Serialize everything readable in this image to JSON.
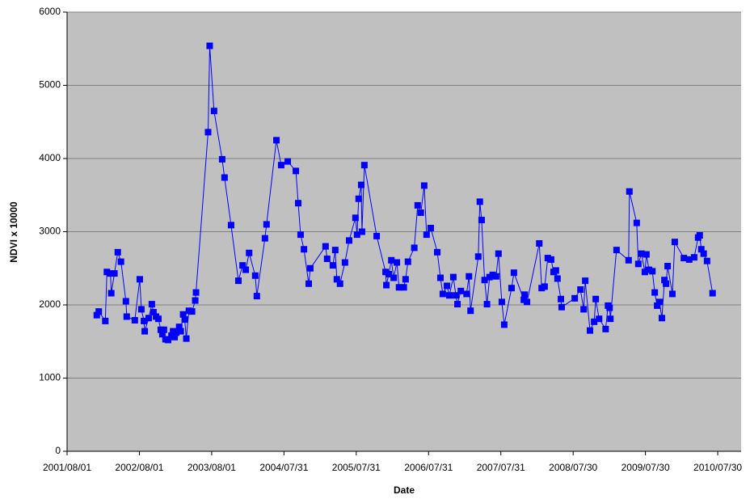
{
  "chart_data": {
    "type": "line",
    "xlabel": "Date",
    "ylabel": "NDVI x 10000",
    "x": [
      "2001/12/29",
      "2002/01/08",
      "2002/02/10",
      "2002/02/18",
      "2002/03/08",
      "2002/03/12",
      "2002/03/28",
      "2002/04/14",
      "2002/04/30",
      "2002/05/25",
      "2002/05/29",
      "2002/07/09",
      "2002/08/03",
      "2002/08/11",
      "2002/08/24",
      "2002/08/28",
      "2002/09/17",
      "2002/10/03",
      "2002/10/11",
      "2002/10/24",
      "2002/11/05",
      "2002/11/17",
      "2002/11/25",
      "2002/12/03",
      "2002/12/11",
      "2002/12/24",
      "2003/01/10",
      "2003/01/18",
      "2003/01/26",
      "2003/02/03",
      "2003/02/18",
      "2003/02/26",
      "2003/03/10",
      "2003/03/18",
      "2003/03/26",
      "2003/04/08",
      "2003/04/24",
      "2003/05/10",
      "2003/05/14",
      "2003/07/14",
      "2003/07/22",
      "2003/08/13",
      "2003/09/23",
      "2003/10/05",
      "2003/11/07",
      "2003/12/14",
      "2004/01/04",
      "2004/01/20",
      "2004/02/06",
      "2004/03/08",
      "2004/03/16",
      "2004/04/26",
      "2004/05/04",
      "2004/06/23",
      "2004/07/17",
      "2004/08/19",
      "2004/09/29",
      "2004/10/11",
      "2004/10/23",
      "2004/11/09",
      "2004/12/03",
      "2004/12/11",
      "2005/02/26",
      "2005/03/06",
      "2005/04/04",
      "2005/04/16",
      "2005/04/24",
      "2005/05/10",
      "2005/06/04",
      "2005/06/25",
      "2005/07/27",
      "2005/08/04",
      "2005/08/12",
      "2005/08/25",
      "2005/08/29",
      "2005/09/10",
      "2005/11/11",
      "2005/12/26",
      "2005/12/30",
      "2006/01/11",
      "2006/01/24",
      "2006/02/05",
      "2006/02/21",
      "2006/03/04",
      "2006/03/28",
      "2006/04/06",
      "2006/04/18",
      "2006/05/20",
      "2006/06/06",
      "2006/06/22",
      "2006/07/09",
      "2006/07/21",
      "2006/08/11",
      "2006/09/13",
      "2006/09/29",
      "2006/10/11",
      "2006/11/01",
      "2006/11/13",
      "2006/12/03",
      "2006/12/16",
      "2006/12/24",
      "2007/01/10",
      "2007/02/08",
      "2007/02/20",
      "2007/02/28",
      "2007/04/08",
      "2007/04/16",
      "2007/04/25",
      "2007/05/10",
      "2007/05/22",
      "2007/06/04",
      "2007/06/20",
      "2007/07/07",
      "2007/07/19",
      "2007/08/05",
      "2007/08/17",
      "2007/09/23",
      "2007/10/05",
      "2007/11/24",
      "2007/11/28",
      "2007/12/10",
      "2008/02/10",
      "2008/02/22",
      "2008/03/08",
      "2008/03/24",
      "2008/04/10",
      "2008/04/22",
      "2008/05/04",
      "2008/05/12",
      "2008/05/29",
      "2008/06/02",
      "2008/08/07",
      "2008/09/05",
      "2008/09/21",
      "2008/09/29",
      "2008/10/23",
      "2008/11/13",
      "2008/11/21",
      "2008/12/08",
      "2009/01/10",
      "2009/01/22",
      "2009/01/30",
      "2009/02/03",
      "2009/03/06",
      "2009/05/06",
      "2009/05/10",
      "2009/06/16",
      "2009/06/24",
      "2009/07/10",
      "2009/07/27",
      "2009/08/04",
      "2009/08/17",
      "2009/09/03",
      "2009/09/15",
      "2009/09/27",
      "2009/10/09",
      "2009/10/21",
      "2009/11/03",
      "2009/11/11",
      "2009/11/19",
      "2009/12/13",
      "2009/12/25",
      "2010/02/09",
      "2010/03/08",
      "2010/04/02",
      "2010/04/22",
      "2010/04/30",
      "2010/05/08",
      "2010/05/20",
      "2010/06/06",
      "2010/07/04"
    ],
    "series": [
      {
        "color": "#0000ff",
        "values": [
          1860,
          1910,
          1780,
          2450,
          2430,
          2160,
          2430,
          2720,
          2590,
          2050,
          1840,
          1790,
          2350,
          1940,
          1780,
          1640,
          1820,
          2010,
          1900,
          1840,
          1810,
          1660,
          1600,
          1660,
          1530,
          1520,
          1580,
          1640,
          1560,
          1620,
          1700,
          1640,
          1870,
          1800,
          1540,
          1920,
          1910,
          2060,
          2170,
          4360,
          5540,
          4650,
          3990,
          3740,
          3090,
          2330,
          2540,
          2480,
          2710,
          2400,
          2120,
          2910,
          3100,
          4250,
          3910,
          3960,
          3830,
          3390,
          2960,
          2760,
          2290,
          2500,
          2800,
          2630,
          2540,
          2750,
          2350,
          2290,
          2580,
          2880,
          3190,
          2960,
          3450,
          3640,
          3000,
          3910,
          2940,
          2450,
          2270,
          2420,
          2610,
          2370,
          2580,
          2240,
          2240,
          2350,
          2590,
          2780,
          3360,
          3260,
          3630,
          2960,
          3050,
          2720,
          2370,
          2150,
          2260,
          2130,
          2380,
          2130,
          2010,
          2190,
          2150,
          2390,
          1920,
          2660,
          3410,
          3160,
          2340,
          2010,
          2380,
          2410,
          2390,
          2700,
          2040,
          1730,
          2230,
          2440,
          2070,
          2140,
          2040,
          2840,
          2230,
          2250,
          2640,
          2620,
          2450,
          2470,
          2360,
          2080,
          1970,
          2090,
          2210,
          1940,
          2330,
          1650,
          1770,
          2080,
          1810,
          1670,
          1990,
          1960,
          1810,
          2750,
          2610,
          3550,
          3120,
          2560,
          2700,
          2450,
          2690,
          2480,
          2460,
          2170,
          1990,
          2040,
          1820,
          2340,
          2290,
          2530,
          2150,
          2860,
          2640,
          2620,
          2650,
          2920,
          2950,
          2760,
          2700,
          2600,
          2160
        ]
      }
    ],
    "xlim": [
      "2001/08/01",
      "2010/11/25"
    ],
    "xticks": [
      "2001/08/01",
      "2002/08/01",
      "2003/08/01",
      "2004/07/31",
      "2005/07/31",
      "2006/07/31",
      "2007/07/31",
      "2008/07/30",
      "2009/07/30",
      "2010/07/30"
    ],
    "ylim": [
      0,
      6000
    ],
    "yticks": [
      0,
      1000,
      2000,
      3000,
      4000,
      5000,
      6000
    ],
    "grid": true
  }
}
